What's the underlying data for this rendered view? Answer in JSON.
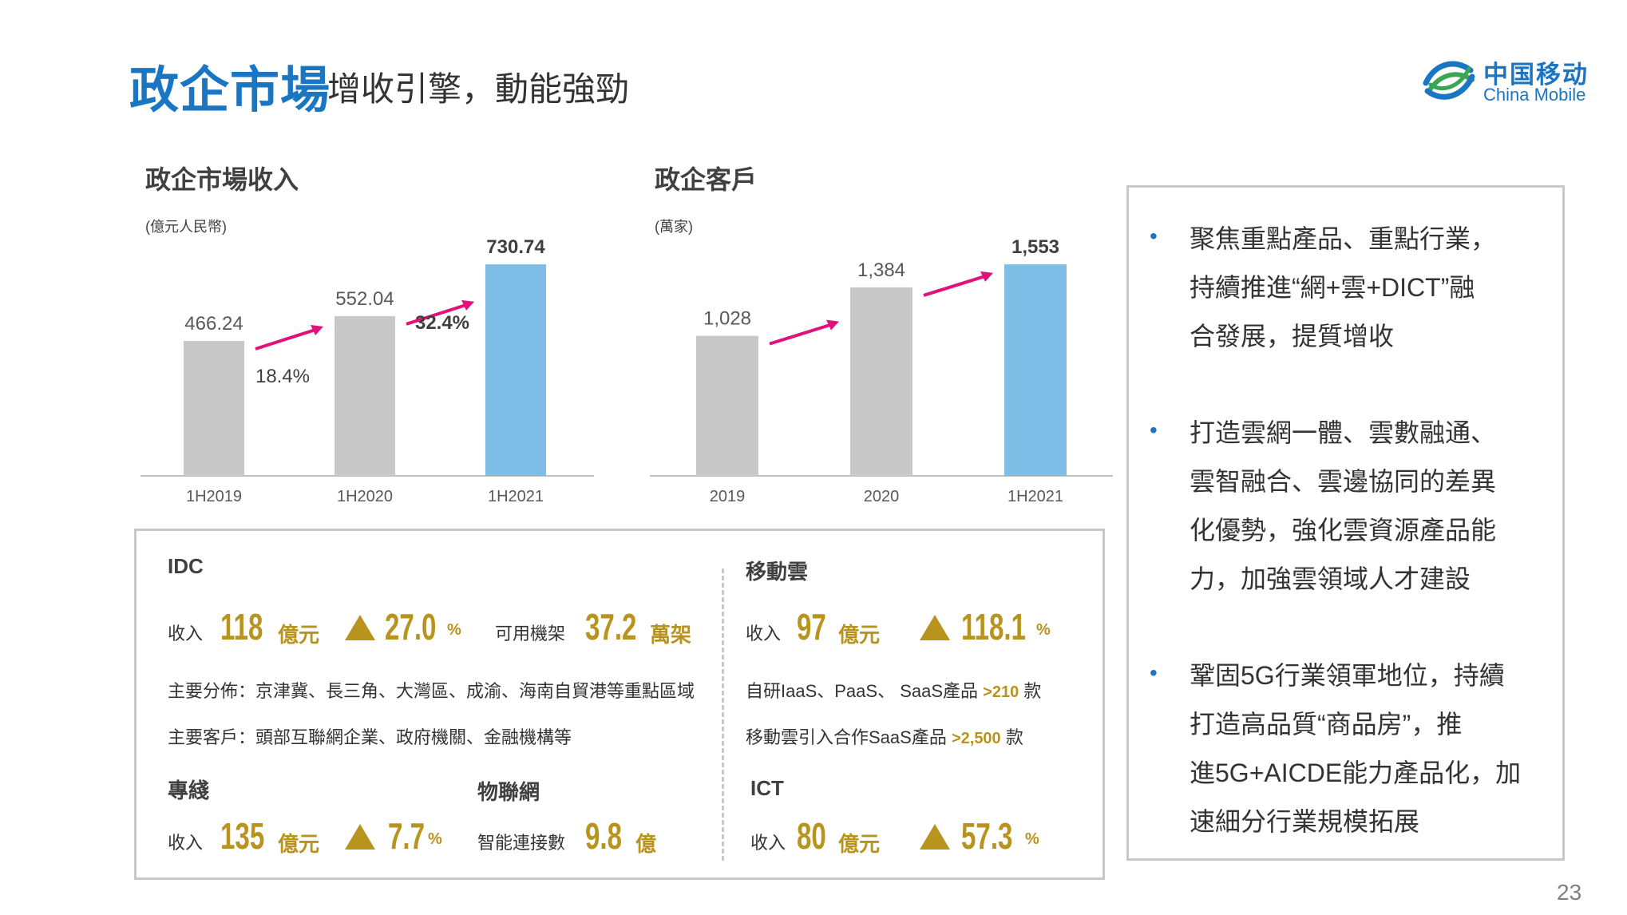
{
  "header": {
    "title_main": "政企市場",
    "title_sub": "增收引擎，動能強勁",
    "logo_cn": "中国移动",
    "logo_en": "China Mobile"
  },
  "chart_data": [
    {
      "type": "bar",
      "title": "政企市場收入",
      "unit": "(億元人民幣)",
      "categories": [
        "1H2019",
        "1H2020",
        "1H2021"
      ],
      "values": [
        466.24,
        552.04,
        730.74
      ],
      "value_labels": [
        "466.24",
        "552.04",
        "730.74"
      ],
      "ylim": [
        0,
        800
      ],
      "growth_labels": [
        "18.4%",
        "32.4%"
      ],
      "colors": [
        "#c8c8c8",
        "#c8c8c8",
        "#7dbde6"
      ],
      "grid": false
    },
    {
      "type": "bar",
      "title": "政企客戶",
      "unit": "(萬家)",
      "categories": [
        "2019",
        "2020",
        "1H2021"
      ],
      "values": [
        1028,
        1384,
        1553
      ],
      "value_labels": [
        "1,028",
        "1,384",
        "1,553"
      ],
      "ylim": [
        0,
        1700
      ],
      "colors": [
        "#c8c8c8",
        "#c8c8c8",
        "#7dbde6"
      ],
      "grid": false
    }
  ],
  "colors": {
    "accent_blue": "#1a76c2",
    "gold": "#b8941f",
    "arrow": "#e0117a",
    "bar_gray": "#c8c8c8",
    "bar_blue": "#7dbde6"
  },
  "idc": {
    "title": "IDC",
    "revenue_label": "收入",
    "revenue_value": "118",
    "revenue_unit": "億元",
    "growth_value": "27.0",
    "growth_unit": "%",
    "racks_label": "可用機架",
    "racks_value": "37.2",
    "racks_unit": "萬架",
    "distribution": "主要分佈：京津冀、長三角、大灣區、成渝、海南自貿港等重點區域",
    "customers": "主要客戶：頭部互聯網企業、政府機關、金融機構等"
  },
  "dedicated_line": {
    "title": "專綫",
    "revenue_label": "收入",
    "revenue_value": "135",
    "revenue_unit": "億元",
    "growth_value": "7.7",
    "growth_unit": "%"
  },
  "iot": {
    "title": "物聯網",
    "connections_label": "智能連接數",
    "connections_value": "9.8",
    "connections_unit": "億"
  },
  "mobile_cloud": {
    "title": "移動雲",
    "revenue_label": "收入",
    "revenue_value": "97",
    "revenue_unit": "億元",
    "growth_value": "118.1",
    "growth_unit": "%",
    "products_prefix": "自研IaaS、PaaS、 SaaS產品",
    "products_value": ">210",
    "products_suffix": "款",
    "saas_prefix": "移動雲引入合作SaaS產品",
    "saas_value": ">2,500",
    "saas_suffix": "款"
  },
  "ict": {
    "title": "ICT",
    "revenue_label": "收入",
    "revenue_value": "80",
    "revenue_unit": "億元",
    "growth_value": "57.3",
    "growth_unit": "%"
  },
  "bullets": [
    {
      "lines": [
        "聚焦重點產品、重點行業，",
        "持續推進“網+雲+DICT”融",
        "合發展，提質增收"
      ]
    },
    {
      "lines": [
        "打造雲網一體、雲數融通、",
        "雲智融合、雲邊協同的差異",
        "化優勢，強化雲資源產品能",
        "力，加強雲領域人才建設"
      ]
    },
    {
      "lines": [
        "鞏固5G行業領軍地位，持續",
        "打造高品質“商品房”，推",
        "進5G+AICDE能力產品化，加",
        "速細分行業規模拓展"
      ]
    }
  ],
  "bullet_symbol": "•",
  "page_number": "23"
}
